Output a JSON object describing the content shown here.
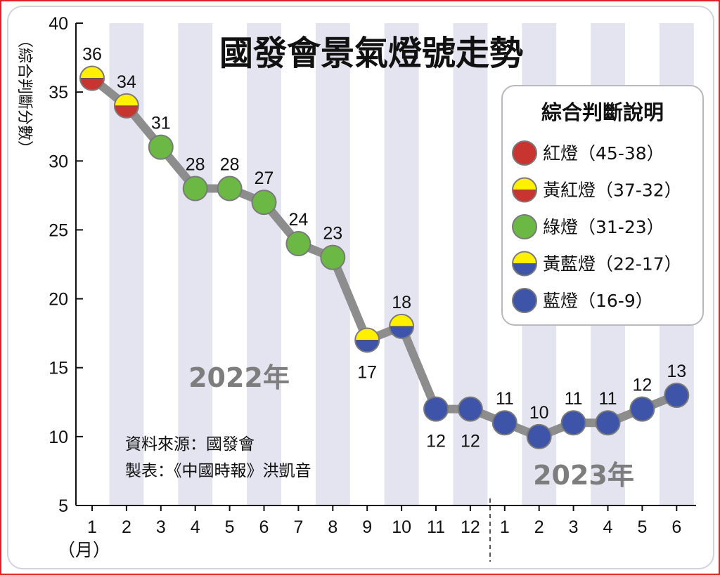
{
  "chart_data": {
    "type": "line",
    "title": "國發會景氣燈號走勢",
    "ylabel": "（綜合判斷分數）",
    "xlabel": "（月）",
    "ylim": [
      5,
      40
    ],
    "yticks": [
      5,
      10,
      15,
      20,
      25,
      30,
      35,
      40
    ],
    "x": [
      "1",
      "2",
      "3",
      "4",
      "5",
      "6",
      "7",
      "8",
      "9",
      "10",
      "11",
      "12",
      "1",
      "2",
      "3",
      "4",
      "5",
      "6"
    ],
    "values": [
      36,
      34,
      31,
      28,
      28,
      27,
      24,
      23,
      17,
      18,
      12,
      12,
      11,
      10,
      11,
      11,
      12,
      13
    ],
    "signals": [
      "yellow-red",
      "yellow-red",
      "green",
      "green",
      "green",
      "green",
      "green",
      "green",
      "yellow-blue",
      "yellow-blue",
      "blue",
      "blue",
      "blue",
      "blue",
      "blue",
      "blue",
      "blue",
      "blue"
    ],
    "year_labels": [
      "2022年",
      "2023年"
    ],
    "legend": {
      "title": "綜合判斷說明",
      "placement": "top-right",
      "items": [
        {
          "label": "紅燈（45-38）",
          "signal": "red"
        },
        {
          "label": "黃紅燈（37-32）",
          "signal": "yellow-red"
        },
        {
          "label": "綠燈（31-23）",
          "signal": "green"
        },
        {
          "label": "黃藍燈（22-17）",
          "signal": "yellow-blue"
        },
        {
          "label": "藍燈（16-9）",
          "signal": "blue"
        }
      ]
    },
    "notes": [
      "資料來源：國發會",
      "製表：《中國時報》洪凱音"
    ],
    "colors": {
      "red": "#c8342f",
      "yellow": "#fff000",
      "green": "#6bb845",
      "blue": "#3d54a8",
      "line": "#8d8d8d",
      "stripe": "#e4e3f0"
    }
  }
}
